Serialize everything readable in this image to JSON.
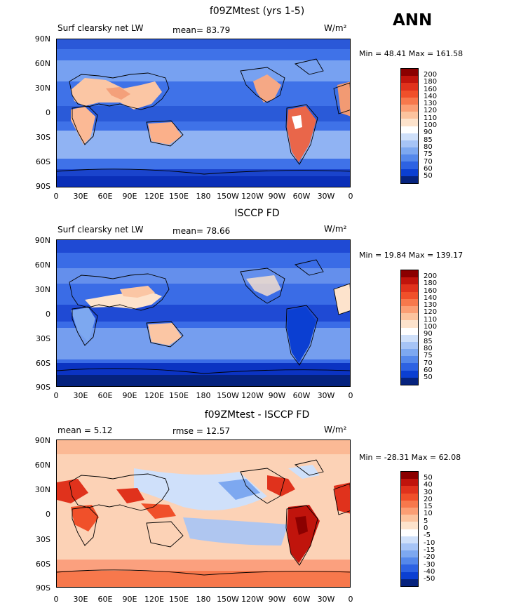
{
  "header": {
    "season": "ANN"
  },
  "panels": [
    {
      "title": "f09ZMtest (yrs 1-5)",
      "left_label": "Surf clearsky net LW",
      "stat_label": "mean=  83.79",
      "units": "W/m²",
      "minmax": "Min =  48.41 Max = 161.58",
      "scheme": "abs"
    },
    {
      "title": "ISCCP FD",
      "left_label": "Surf clearsky net LW",
      "stat_label": "mean=  78.66",
      "units": "W/m²",
      "minmax": "Min =  19.84 Max = 139.17",
      "scheme": "abs"
    },
    {
      "title": "f09ZMtest - ISCCP FD",
      "left_label": "mean =   5.12",
      "stat_label": "rmse =  12.57",
      "units": "W/m²",
      "minmax": "Min = -28.31 Max =  62.08",
      "scheme": "diff"
    }
  ],
  "lat_labels": [
    "90N",
    "60N",
    "30N",
    "0",
    "30S",
    "60S",
    "90S"
  ],
  "lon_labels": [
    "0",
    "30E",
    "60E",
    "90E",
    "120E",
    "150E",
    "180",
    "150W",
    "120W",
    "90W",
    "60W",
    "30W",
    "0"
  ],
  "colorbars": {
    "abs": {
      "labels": [
        "200",
        "180",
        "160",
        "140",
        "130",
        "120",
        "110",
        "100",
        "90",
        "85",
        "80",
        "75",
        "70",
        "60",
        "50"
      ],
      "colors": [
        "#8b0000",
        "#c0140c",
        "#e0321c",
        "#f0502a",
        "#f7784c",
        "#fb9e74",
        "#fcc39e",
        "#fde3cc",
        "#ffffff",
        "#cfe0fa",
        "#a6c4f6",
        "#7da8f0",
        "#5588ea",
        "#2d62e2",
        "#0b3fd2",
        "#06237e"
      ]
    },
    "diff": {
      "labels": [
        "50",
        "40",
        "30",
        "20",
        "15",
        "10",
        "5",
        "0",
        "-5",
        "-10",
        "-15",
        "-20",
        "-30",
        "-40",
        "-50"
      ],
      "colors": [
        "#8b0000",
        "#c0140c",
        "#e0321c",
        "#f0502a",
        "#f7784c",
        "#fb9e74",
        "#fcc39e",
        "#fde3cc",
        "#ffffff",
        "#cfe0fa",
        "#a6c4f6",
        "#7da8f0",
        "#5588ea",
        "#2d62e2",
        "#0b3fd2",
        "#06237e"
      ]
    }
  }
}
